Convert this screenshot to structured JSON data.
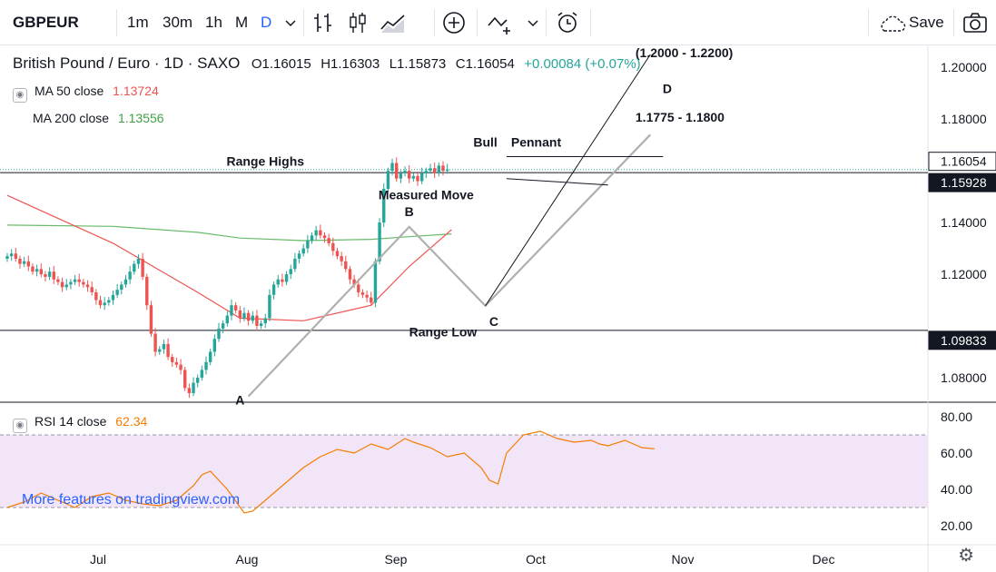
{
  "toolbar": {
    "symbol": "GBPEUR",
    "intervals": [
      "1m",
      "30m",
      "1h",
      "M",
      "D"
    ],
    "active_interval": "D",
    "save_label": "Save",
    "icons": [
      "chevron-down-icon",
      "bar-chart-icon",
      "candles-icon",
      "area-chart-icon",
      "plus-circle-icon",
      "indicators-icon",
      "chevron-down-icon",
      "alarm-icon",
      "cloud-icon",
      "camera-icon"
    ]
  },
  "legend": {
    "title": "British Pound / Euro · 1D · SAXO",
    "open": "O1.16015",
    "high": "H1.16303",
    "low": "L1.15873",
    "close": "C1.16054",
    "change": "+0.00084 (+0.07%)"
  },
  "indicators": {
    "ma50": {
      "label": "MA 50 close",
      "value": "1.13724",
      "color": "#ef5350"
    },
    "ma200": {
      "label": "MA 200 close",
      "value": "1.13556",
      "color": "#43a047"
    },
    "rsi": {
      "label": "RSI 14 close",
      "value": "62.34",
      "color": "#f57c00"
    }
  },
  "watermark": "More features on tradingview.com",
  "colors": {
    "up": "#26a69a",
    "down": "#ef5350",
    "ma50": "#ef5350",
    "ma200": "#66bb6a",
    "rsi": "#f57c00",
    "pattern": "#b0b0b0"
  },
  "chart_data": [
    {
      "type": "candlestick",
      "title": "British Pound / Euro · 1D · SAXO",
      "x_ticks": [
        "Jul",
        "Aug",
        "Sep",
        "Oct",
        "Nov",
        "Dec"
      ],
      "y_ticks": [
        "1.20000",
        "1.18000",
        "1.16054",
        "1.15928",
        "1.14000",
        "1.12000",
        "1.09833",
        "1.08000"
      ],
      "price_badges": [
        {
          "label": "1.16054",
          "style": "current"
        },
        {
          "label": "1.15928",
          "style": "level"
        },
        {
          "label": "1.09833",
          "style": "level"
        }
      ],
      "ylim": [
        1.0705,
        1.2085
      ],
      "closes": [
        1.127,
        1.128,
        1.126,
        1.124,
        1.125,
        1.123,
        1.121,
        1.122,
        1.12,
        1.119,
        1.121,
        1.118,
        1.117,
        1.115,
        1.116,
        1.117,
        1.118,
        1.117,
        1.116,
        1.115,
        1.113,
        1.11,
        1.108,
        1.109,
        1.11,
        1.112,
        1.114,
        1.116,
        1.118,
        1.121,
        1.124,
        1.126,
        1.119,
        1.108,
        1.097,
        1.09,
        1.091,
        1.093,
        1.088,
        1.086,
        1.085,
        1.083,
        1.076,
        1.074,
        1.078,
        1.08,
        1.083,
        1.086,
        1.09,
        1.095,
        1.099,
        1.101,
        1.104,
        1.108,
        1.106,
        1.103,
        1.105,
        1.102,
        1.104,
        1.1,
        1.101,
        1.103,
        1.112,
        1.116,
        1.118,
        1.117,
        1.12,
        1.122,
        1.126,
        1.128,
        1.13,
        1.133,
        1.135,
        1.137,
        1.135,
        1.134,
        1.132,
        1.129,
        1.127,
        1.125,
        1.122,
        1.118,
        1.116,
        1.113,
        1.112,
        1.111,
        1.109,
        1.125,
        1.14,
        1.153,
        1.16,
        1.163,
        1.157,
        1.159,
        1.16,
        1.157,
        1.158,
        1.156,
        1.159,
        1.16,
        1.161,
        1.159,
        1.162,
        1.16,
        1.1605
      ],
      "levels": {
        "range_highs": 1.1593,
        "range_low": 1.0983
      },
      "ma50": [
        [
          0,
          1.1505
        ],
        [
          25,
          1.132
        ],
        [
          45,
          1.113
        ],
        [
          55,
          1.103
        ],
        [
          70,
          1.102
        ],
        [
          86,
          1.108
        ],
        [
          95,
          1.123
        ],
        [
          105,
          1.1372
        ]
      ],
      "ma200": [
        [
          0,
          1.139
        ],
        [
          25,
          1.1385
        ],
        [
          45,
          1.1362
        ],
        [
          55,
          1.134
        ],
        [
          70,
          1.133
        ],
        [
          86,
          1.1335
        ],
        [
          95,
          1.1345
        ],
        [
          105,
          1.1356
        ]
      ],
      "pattern": {
        "measured_move": [
          [
            57,
            1.0728
          ],
          [
            95,
            1.1383
          ],
          [
            113,
            1.1078
          ],
          [
            152,
            1.174
          ]
        ],
        "target_line": [
          [
            113,
            1.1078
          ],
          [
            152,
            1.205
          ]
        ],
        "pennant_upper": [
          [
            118,
            1.1655
          ],
          [
            155,
            1.1655
          ]
        ],
        "pennant_lower": [
          [
            118,
            1.157
          ],
          [
            142,
            1.1545
          ]
        ]
      },
      "annotations": [
        {
          "text": "Range Highs",
          "x": 61,
          "y": 1.162
        },
        {
          "text": "Range Low",
          "x": 103,
          "y": 1.096
        },
        {
          "text": "Measured Move",
          "x": 99,
          "y": 1.149
        },
        {
          "text": "A",
          "x": 55,
          "y": 1.0697
        },
        {
          "text": "B",
          "x": 95,
          "y": 1.1425
        },
        {
          "text": "C",
          "x": 115,
          "y": 1.1
        },
        {
          "text": "D",
          "x": 156,
          "y": 1.19
        },
        {
          "text": "Bull",
          "x": 113,
          "y": 1.1693
        },
        {
          "text": "Pennant",
          "x": 125,
          "y": 1.1693
        },
        {
          "text": "1.1775 - 1.1800",
          "x": 159,
          "y": 1.179
        },
        {
          "text": "(1.2000 - 1.2200)",
          "x": 160,
          "y": 1.204
        }
      ]
    },
    {
      "type": "line",
      "title": "RSI 14 close",
      "y_ticks": [
        "80.00",
        "60.00",
        "40.00",
        "20.00"
      ],
      "ylim": [
        12,
        86
      ],
      "band": [
        30,
        70
      ],
      "series": [
        {
          "name": "RSI 14 close",
          "x": [
            0,
            4,
            8,
            12,
            16,
            20,
            24,
            28,
            32,
            36,
            40,
            42,
            44,
            46,
            48,
            52,
            56,
            58,
            62,
            66,
            70,
            74,
            78,
            82,
            86,
            90,
            94,
            96,
            100,
            104,
            108,
            112,
            114,
            116,
            118,
            122,
            126,
            130,
            134,
            138,
            140,
            142,
            146,
            150,
            153
          ],
          "values": [
            30,
            33,
            38,
            34,
            30,
            36,
            38,
            34,
            32,
            31,
            34,
            38,
            42,
            48,
            50,
            40,
            27,
            28,
            36,
            44,
            52,
            58,
            62,
            60,
            65,
            62,
            68,
            66,
            63,
            58,
            60,
            52,
            45,
            43,
            60,
            70,
            72,
            68,
            66,
            67,
            65,
            64,
            67,
            63,
            62.34
          ]
        }
      ]
    }
  ]
}
